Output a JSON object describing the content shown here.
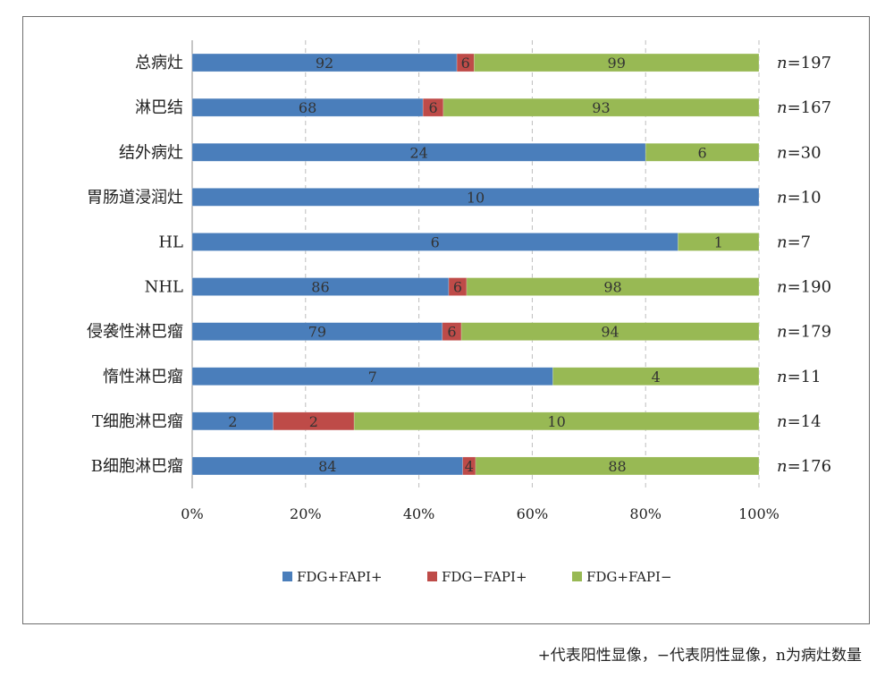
{
  "chart_data": {
    "type": "bar",
    "orientation": "horizontal",
    "stacked": true,
    "normalized": true,
    "categories": [
      "总病灶",
      "淋巴结",
      "结外病灶",
      "胃肠道浸润灶",
      "HL",
      "NHL",
      "侵袭性淋巴瘤",
      "惰性淋巴瘤",
      "T细胞淋巴瘤",
      "B细胞淋巴瘤"
    ],
    "series": [
      {
        "name": "FDG+FAPI+",
        "color": "#4a7ebb",
        "values": [
          92,
          68,
          24,
          10,
          6,
          86,
          79,
          7,
          2,
          84
        ]
      },
      {
        "name": "FDG−FAPI+",
        "color": "#be4b48",
        "values": [
          6,
          6,
          0,
          0,
          0,
          6,
          6,
          0,
          2,
          4
        ]
      },
      {
        "name": "FDG+FAPI−",
        "color": "#98b954",
        "values": [
          99,
          93,
          6,
          0,
          1,
          98,
          94,
          4,
          10,
          88
        ]
      }
    ],
    "n_labels": [
      "n=197",
      "n=167",
      "n=30",
      "n=10",
      "n=7",
      "n=190",
      "n=179",
      "n=11",
      "n=14",
      "n=176"
    ],
    "x_ticks": [
      "0%",
      "20%",
      "40%",
      "60%",
      "80%",
      "100%"
    ],
    "xlim": [
      0,
      100
    ],
    "grid": "vertical dashed",
    "legend_position": "bottom"
  },
  "footnote": "+代表阳性显像，−代表阴性显像，n为病灶数量"
}
